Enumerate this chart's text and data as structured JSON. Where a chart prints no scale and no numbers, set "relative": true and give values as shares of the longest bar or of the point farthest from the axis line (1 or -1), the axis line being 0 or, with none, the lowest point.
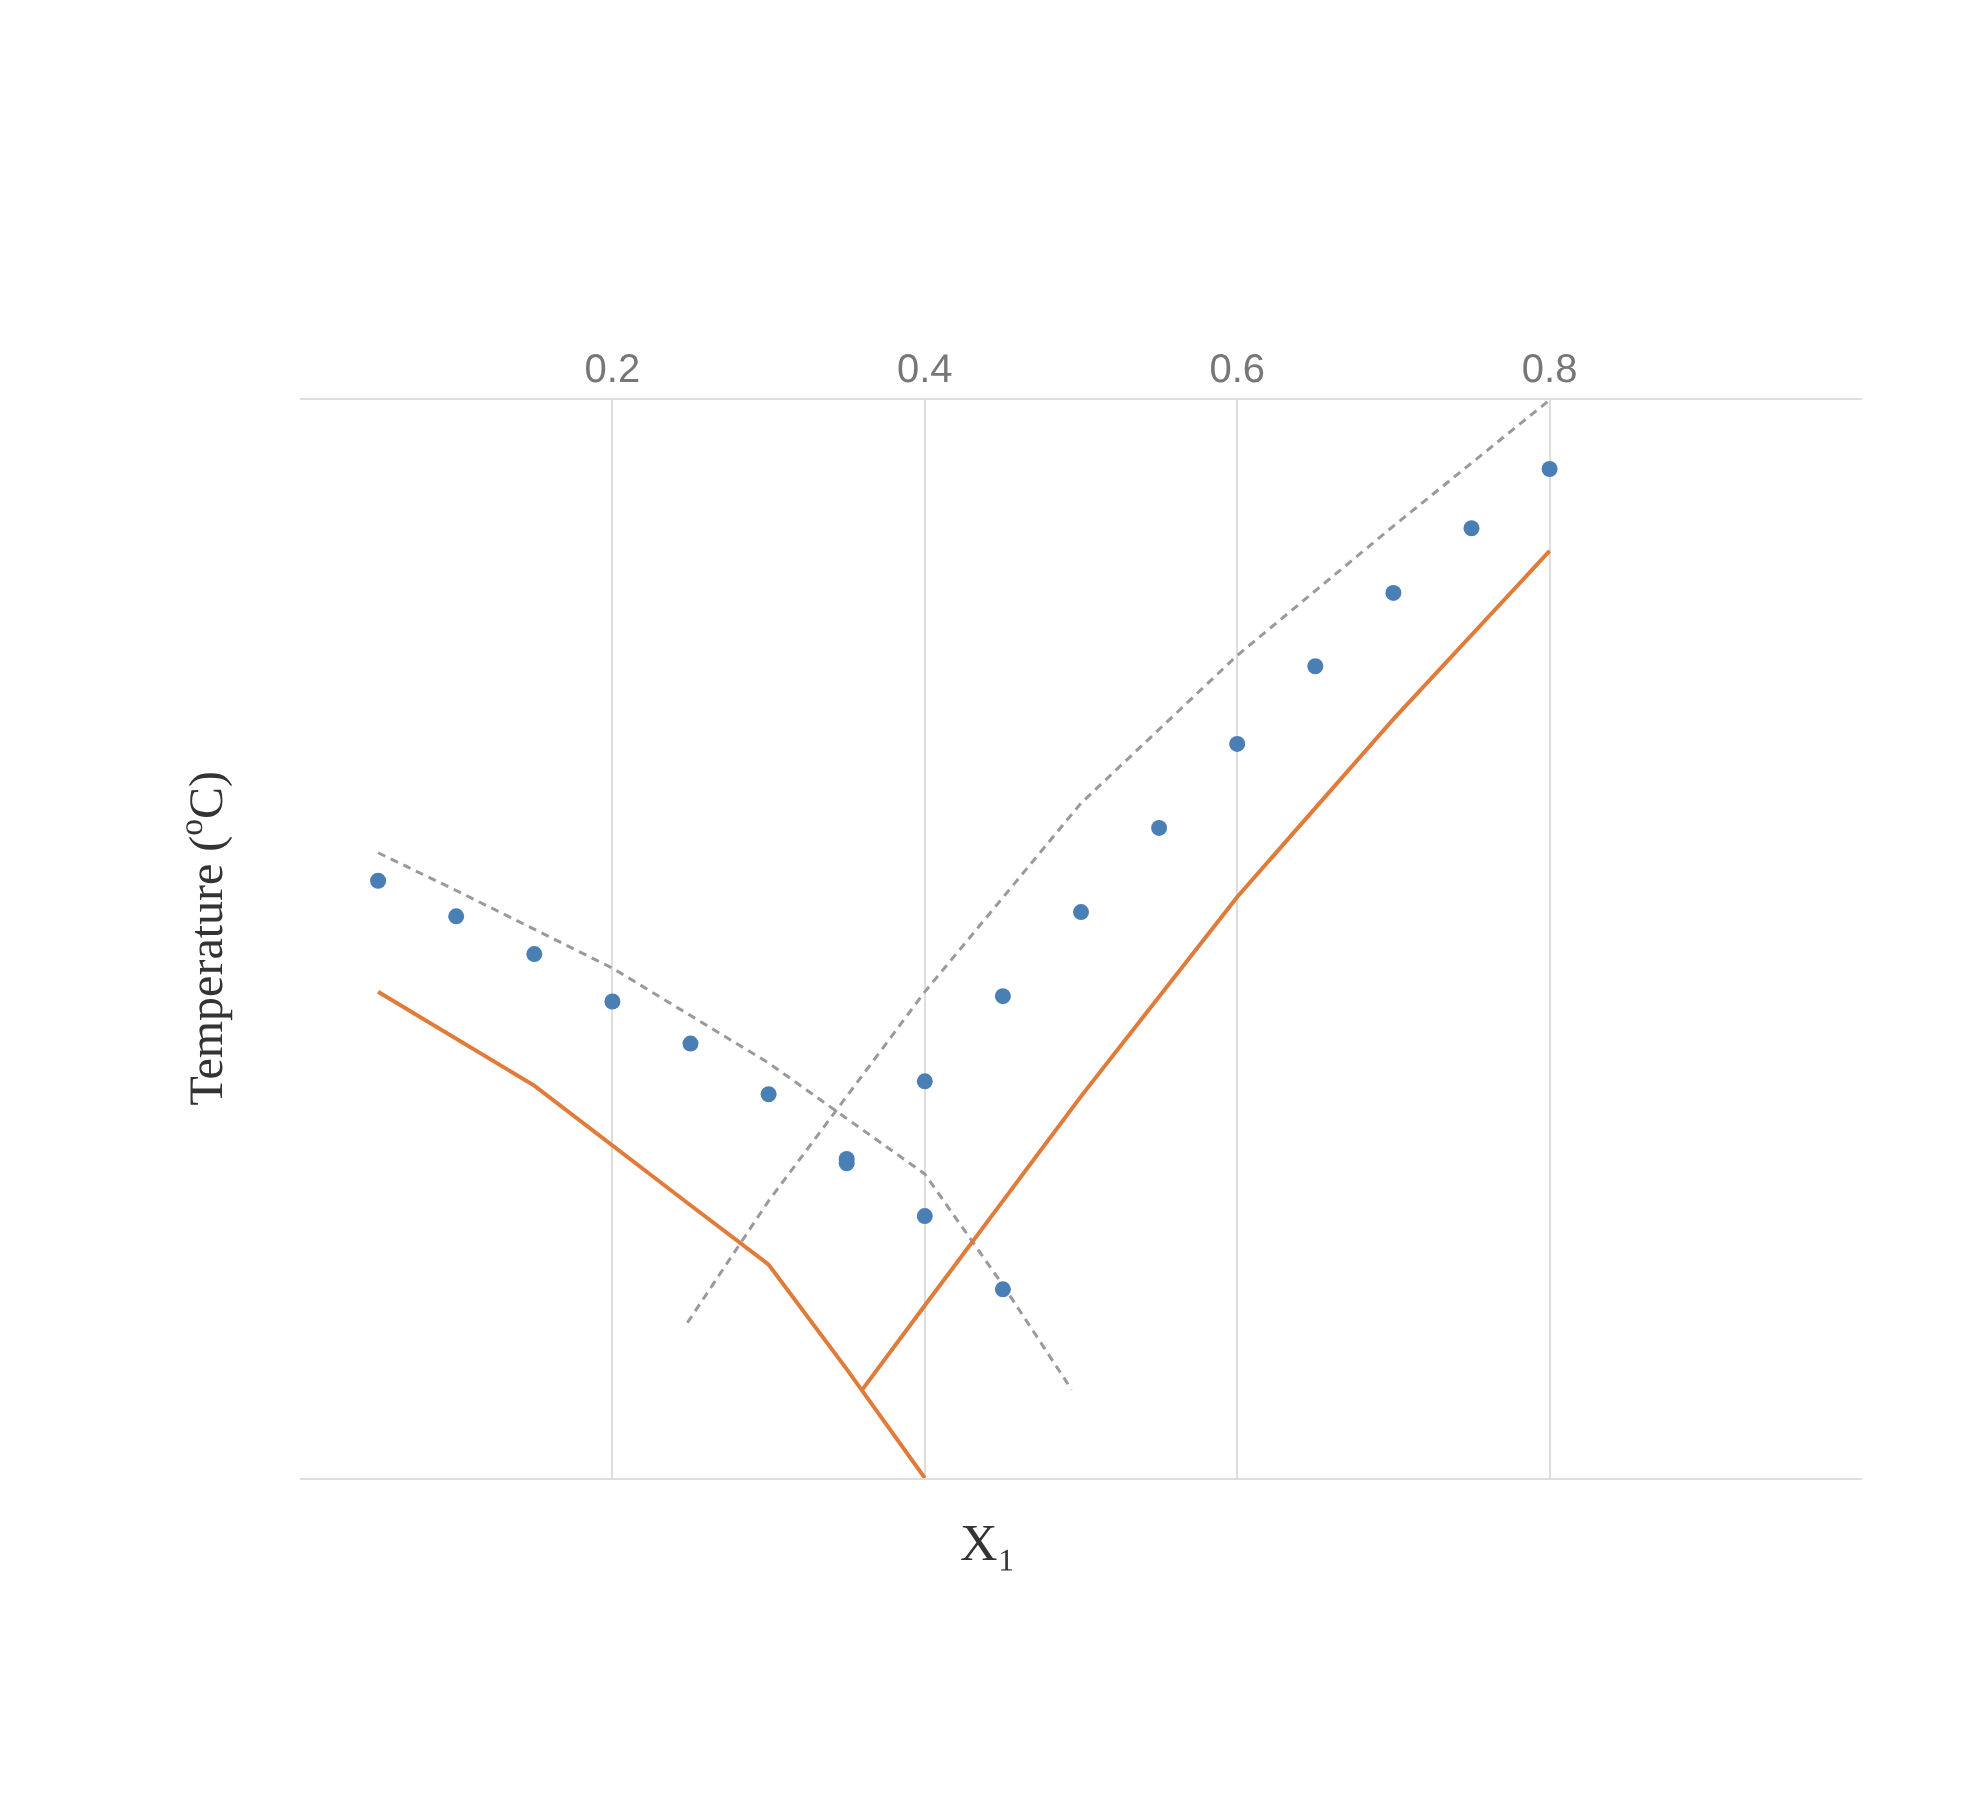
{
  "chart_data": {
    "type": "line",
    "relative": true,
    "xlabel": "X₁",
    "ylabel": "Temperature ($^{o}$C)",
    "xlim": [
      0,
      1
    ],
    "xticks": [
      0.2,
      0.4,
      0.6,
      0.8
    ],
    "grid": "x",
    "series": [
      {
        "line_style": "dashed",
        "marker": "none",
        "color": "#9a9a9a",
        "x": [
          0.05,
          0.1,
          0.2,
          0.3,
          0.4,
          0.45,
          0.494
        ],
        "values": [
          0.58,
          0.545,
          0.473,
          0.385,
          0.282,
          0.179,
          0.082
        ]
      },
      {
        "line_style": "dashed",
        "marker": "none",
        "color": "#9a9a9a",
        "x": [
          0.248,
          0.3,
          0.4,
          0.5,
          0.6,
          0.7,
          0.8
        ],
        "values": [
          0.144,
          0.257,
          0.451,
          0.626,
          0.763,
          0.883,
          1.0
        ]
      },
      {
        "line_style": "solid",
        "marker": "none",
        "color": "#e07b39",
        "x": [
          0.05,
          0.15,
          0.25,
          0.3,
          0.35,
          0.4
        ],
        "values": [
          0.451,
          0.364,
          0.253,
          0.198,
          0.101,
          0.0
        ]
      },
      {
        "line_style": "solid",
        "marker": "none",
        "color": "#e07b39",
        "x": [
          0.36,
          0.4,
          0.5,
          0.6,
          0.7,
          0.8
        ],
        "values": [
          0.082,
          0.16,
          0.354,
          0.539,
          0.704,
          0.86
        ]
      },
      {
        "type": "scatter",
        "marker": "circle",
        "color": "#4a7fb5",
        "x": [
          0.05,
          0.1,
          0.15,
          0.2,
          0.25,
          0.3,
          0.35,
          0.4,
          0.45
        ],
        "values": [
          0.554,
          0.521,
          0.486,
          0.442,
          0.403,
          0.356,
          0.292,
          0.243,
          0.175
        ]
      },
      {
        "type": "scatter",
        "marker": "circle",
        "color": "#4a7fb5",
        "x": [
          0.35,
          0.4,
          0.45,
          0.5,
          0.55,
          0.6,
          0.65,
          0.7,
          0.75,
          0.8
        ],
        "values": [
          0.296,
          0.368,
          0.447,
          0.525,
          0.603,
          0.681,
          0.753,
          0.821,
          0.881,
          0.936
        ]
      }
    ]
  }
}
